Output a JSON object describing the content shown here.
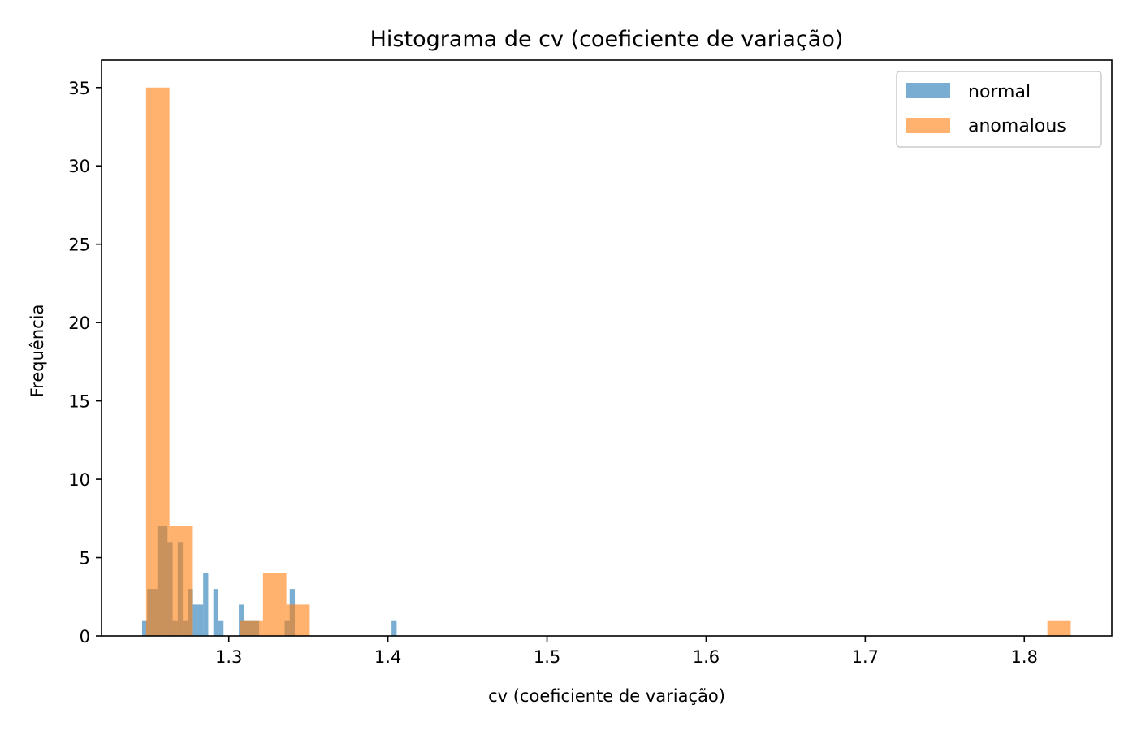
{
  "chart_data": {
    "type": "bar",
    "subtype": "histogram-overlay",
    "title": "Histograma de cv (coeficiente de variação)",
    "xlabel": "cv (coeficiente de variação)",
    "ylabel": "Frequência",
    "xlim": [
      1.22,
      1.855
    ],
    "ylim": [
      0,
      36.75
    ],
    "xticks": [
      1.3,
      1.4,
      1.5,
      1.6,
      1.7,
      1.8
    ],
    "xtick_labels": [
      "1.3",
      "1.4",
      "1.5",
      "1.6",
      "1.7",
      "1.8"
    ],
    "yticks": [
      0,
      5,
      10,
      15,
      20,
      25,
      30,
      35
    ],
    "ytick_labels": [
      "0",
      "5",
      "10",
      "15",
      "20",
      "25",
      "30",
      "35"
    ],
    "grid": false,
    "legend": {
      "position": "top-right",
      "entries": [
        "normal",
        "anomalous"
      ]
    },
    "series": [
      {
        "name": "normal",
        "color": "#1f77b4",
        "opacity": 0.6,
        "bins": [
          {
            "x0": 1.2455,
            "x1": 1.2487,
            "count": 1
          },
          {
            "x0": 1.2487,
            "x1": 1.2519,
            "count": 3
          },
          {
            "x0": 1.2519,
            "x1": 1.2551,
            "count": 3
          },
          {
            "x0": 1.2551,
            "x1": 1.2583,
            "count": 7
          },
          {
            "x0": 1.2583,
            "x1": 1.2615,
            "count": 7
          },
          {
            "x0": 1.2615,
            "x1": 1.2647,
            "count": 6
          },
          {
            "x0": 1.2647,
            "x1": 1.2679,
            "count": 1
          },
          {
            "x0": 1.2679,
            "x1": 1.2711,
            "count": 6
          },
          {
            "x0": 1.2711,
            "x1": 1.2743,
            "count": 1
          },
          {
            "x0": 1.2743,
            "x1": 1.2775,
            "count": 3
          },
          {
            "x0": 1.2775,
            "x1": 1.2807,
            "count": 2
          },
          {
            "x0": 1.2807,
            "x1": 1.2839,
            "count": 2
          },
          {
            "x0": 1.2839,
            "x1": 1.2871,
            "count": 4
          },
          {
            "x0": 1.2903,
            "x1": 1.2935,
            "count": 3
          },
          {
            "x0": 1.2935,
            "x1": 1.2967,
            "count": 1
          },
          {
            "x0": 1.3063,
            "x1": 1.3095,
            "count": 2
          },
          {
            "x0": 1.3095,
            "x1": 1.3127,
            "count": 1
          },
          {
            "x0": 1.3127,
            "x1": 1.3159,
            "count": 1
          },
          {
            "x0": 1.3159,
            "x1": 1.3191,
            "count": 1
          },
          {
            "x0": 1.3351,
            "x1": 1.3383,
            "count": 1
          },
          {
            "x0": 1.3383,
            "x1": 1.3415,
            "count": 3
          },
          {
            "x0": 1.4023,
            "x1": 1.4055,
            "count": 1
          }
        ]
      },
      {
        "name": "anomalous",
        "color": "#ff7f0e",
        "opacity": 0.6,
        "bins": [
          {
            "x0": 1.248,
            "x1": 1.2627,
            "count": 35
          },
          {
            "x0": 1.2627,
            "x1": 1.2774,
            "count": 7
          },
          {
            "x0": 1.3068,
            "x1": 1.3215,
            "count": 1
          },
          {
            "x0": 1.3215,
            "x1": 1.3362,
            "count": 4
          },
          {
            "x0": 1.3362,
            "x1": 1.3509,
            "count": 2
          },
          {
            "x0": 1.8145,
            "x1": 1.8292,
            "count": 1
          }
        ]
      }
    ]
  }
}
